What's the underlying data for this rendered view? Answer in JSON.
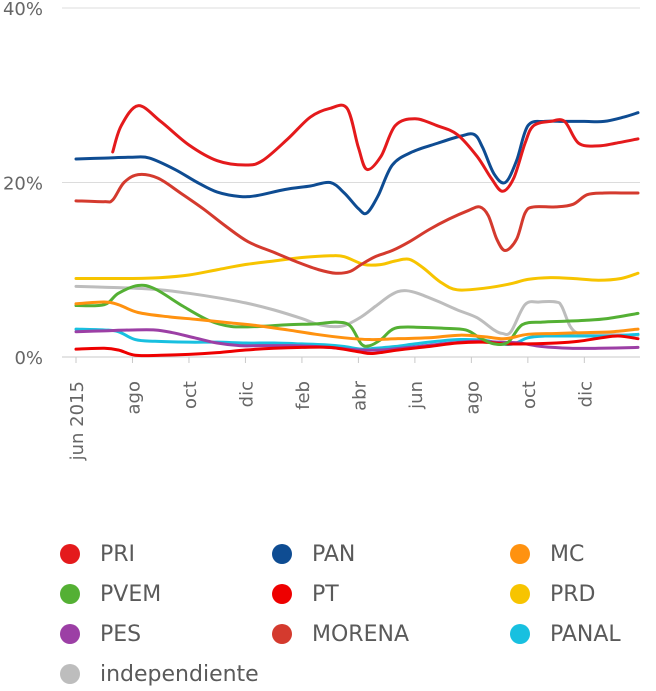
{
  "chart_data": {
    "type": "line",
    "title": "",
    "xlabel": "",
    "ylabel": "",
    "ylim": [
      0,
      40
    ],
    "y_ticks": [
      "0%",
      "20%",
      "40%"
    ],
    "x_tick_labels": [
      "jun 2015",
      "ago",
      "oct",
      "dic",
      "feb",
      "abr",
      "jun",
      "ago",
      "oct",
      "dic"
    ],
    "x_tick_months": [
      0,
      2,
      4,
      6,
      8,
      10,
      12,
      14,
      16,
      18
    ],
    "x_range_months": [
      0,
      19.9
    ],
    "legend_position": "bottom",
    "grid": "horizontal-at-ticks",
    "series": [
      {
        "name": "PRI",
        "color": "#e41a1c",
        "points": [
          [
            1.3,
            23.5
          ],
          [
            1.6,
            26.5
          ],
          [
            2.2,
            28.8
          ],
          [
            3,
            27
          ],
          [
            4,
            24.3
          ],
          [
            5,
            22.5
          ],
          [
            6,
            22
          ],
          [
            6.6,
            22.5
          ],
          [
            7.5,
            25
          ],
          [
            8.3,
            27.5
          ],
          [
            9,
            28.5
          ],
          [
            9.6,
            28.5
          ],
          [
            10,
            24
          ],
          [
            10.3,
            21.5
          ],
          [
            10.8,
            23
          ],
          [
            11.3,
            26.5
          ],
          [
            12,
            27.3
          ],
          [
            12.8,
            26.5
          ],
          [
            13.5,
            25.5
          ],
          [
            14.2,
            23
          ],
          [
            14.7,
            20.5
          ],
          [
            15.1,
            19
          ],
          [
            15.5,
            20.5
          ],
          [
            15.9,
            24.5
          ],
          [
            16.2,
            26.5
          ],
          [
            16.8,
            27
          ],
          [
            17.3,
            27
          ],
          [
            17.8,
            24.5
          ],
          [
            18.5,
            24.2
          ],
          [
            19.1,
            24.5
          ],
          [
            19.9,
            25
          ]
        ]
      },
      {
        "name": "PAN",
        "color": "#0e4c92",
        "points": [
          [
            0,
            22.7
          ],
          [
            1,
            22.8
          ],
          [
            2,
            22.9
          ],
          [
            2.6,
            22.8
          ],
          [
            3.5,
            21.5
          ],
          [
            4.3,
            20
          ],
          [
            5,
            18.9
          ],
          [
            5.8,
            18.4
          ],
          [
            6.4,
            18.5
          ],
          [
            7.4,
            19.2
          ],
          [
            8.3,
            19.6
          ],
          [
            9,
            20
          ],
          [
            9.5,
            18.8
          ],
          [
            10,
            17
          ],
          [
            10.3,
            16.5
          ],
          [
            10.7,
            18.5
          ],
          [
            11.2,
            22
          ],
          [
            11.9,
            23.5
          ],
          [
            12.8,
            24.5
          ],
          [
            13.6,
            25.3
          ],
          [
            14.1,
            25.5
          ],
          [
            14.4,
            24
          ],
          [
            14.8,
            21
          ],
          [
            15.2,
            20
          ],
          [
            15.6,
            22.5
          ],
          [
            16,
            26.5
          ],
          [
            16.6,
            27
          ],
          [
            17.3,
            27
          ],
          [
            18,
            27
          ],
          [
            18.7,
            27
          ],
          [
            19.4,
            27.5
          ],
          [
            19.9,
            28
          ]
        ]
      },
      {
        "name": "MC",
        "color": "#ff9210",
        "points": [
          [
            0,
            6.1
          ],
          [
            1,
            6.3
          ],
          [
            1.5,
            6
          ],
          [
            2.2,
            5.1
          ],
          [
            3.3,
            4.6
          ],
          [
            4.3,
            4.3
          ],
          [
            5.5,
            3.9
          ],
          [
            6.4,
            3.6
          ],
          [
            7.5,
            3.1
          ],
          [
            8.5,
            2.6
          ],
          [
            9.5,
            2.2
          ],
          [
            10.4,
            2
          ],
          [
            11.4,
            2.1
          ],
          [
            12.5,
            2.2
          ],
          [
            13.6,
            2.5
          ],
          [
            14.5,
            2.3
          ],
          [
            15.2,
            2.1
          ],
          [
            16,
            2.6
          ],
          [
            17,
            2.7
          ],
          [
            18.1,
            2.8
          ],
          [
            19,
            2.9
          ],
          [
            19.9,
            3.2
          ]
        ]
      },
      {
        "name": "PVEM",
        "color": "#54b034",
        "points": [
          [
            0,
            5.9
          ],
          [
            1,
            6
          ],
          [
            1.5,
            7.3
          ],
          [
            2.2,
            8.2
          ],
          [
            2.8,
            7.8
          ],
          [
            3.8,
            5.8
          ],
          [
            4.7,
            4.2
          ],
          [
            5.5,
            3.5
          ],
          [
            6.5,
            3.5
          ],
          [
            7.5,
            3.7
          ],
          [
            8.5,
            3.8
          ],
          [
            9.2,
            4
          ],
          [
            9.7,
            3.6
          ],
          [
            10.1,
            1.5
          ],
          [
            10.4,
            1.3
          ],
          [
            10.8,
            2
          ],
          [
            11.3,
            3.3
          ],
          [
            12.2,
            3.4
          ],
          [
            13,
            3.3
          ],
          [
            13.8,
            3.1
          ],
          [
            14.3,
            2.2
          ],
          [
            14.8,
            1.5
          ],
          [
            15.3,
            1.7
          ],
          [
            15.8,
            3.7
          ],
          [
            16.5,
            4
          ],
          [
            17.3,
            4.1
          ],
          [
            18,
            4.2
          ],
          [
            18.8,
            4.4
          ],
          [
            19.9,
            5
          ]
        ]
      },
      {
        "name": "PT",
        "color": "#ee0000",
        "points": [
          [
            0,
            0.9
          ],
          [
            1,
            1
          ],
          [
            1.5,
            0.8
          ],
          [
            2.1,
            0.2
          ],
          [
            3,
            0.2
          ],
          [
            4,
            0.3
          ],
          [
            5,
            0.5
          ],
          [
            6,
            0.8
          ],
          [
            7,
            1
          ],
          [
            8,
            1.1
          ],
          [
            9,
            1.1
          ],
          [
            10,
            0.6
          ],
          [
            10.5,
            0.4
          ],
          [
            11.4,
            0.8
          ],
          [
            12.5,
            1.2
          ],
          [
            13.5,
            1.6
          ],
          [
            14.4,
            1.7
          ],
          [
            15.2,
            1.5
          ],
          [
            16,
            1.5
          ],
          [
            17,
            1.6
          ],
          [
            17.8,
            1.8
          ],
          [
            18.6,
            2.2
          ],
          [
            19.2,
            2.4
          ],
          [
            19.9,
            2.1
          ]
        ]
      },
      {
        "name": "PRD",
        "color": "#f7c400",
        "points": [
          [
            0,
            9
          ],
          [
            1,
            9
          ],
          [
            2,
            9
          ],
          [
            3,
            9.1
          ],
          [
            4,
            9.4
          ],
          [
            5,
            10
          ],
          [
            6,
            10.6
          ],
          [
            7,
            11
          ],
          [
            8,
            11.4
          ],
          [
            9,
            11.6
          ],
          [
            9.5,
            11.5
          ],
          [
            10.2,
            10.6
          ],
          [
            10.8,
            10.6
          ],
          [
            11.3,
            11
          ],
          [
            11.8,
            11.2
          ],
          [
            12.3,
            10.2
          ],
          [
            12.9,
            8.6
          ],
          [
            13.5,
            7.7
          ],
          [
            14.5,
            7.9
          ],
          [
            15.4,
            8.4
          ],
          [
            16,
            8.9
          ],
          [
            16.8,
            9.1
          ],
          [
            17.6,
            9
          ],
          [
            18.5,
            8.8
          ],
          [
            19.3,
            9
          ],
          [
            19.9,
            9.6
          ]
        ]
      },
      {
        "name": "PES",
        "color": "#9c3fa5",
        "points": [
          [
            0,
            2.9
          ],
          [
            1,
            3
          ],
          [
            2,
            3.1
          ],
          [
            2.8,
            3.1
          ],
          [
            3.4,
            2.8
          ],
          [
            4.2,
            2.2
          ],
          [
            5,
            1.6
          ],
          [
            5.8,
            1.3
          ],
          [
            6.5,
            1.3
          ],
          [
            7.5,
            1.3
          ],
          [
            8.5,
            1.2
          ],
          [
            9.3,
            1
          ],
          [
            10,
            0.8
          ],
          [
            10.8,
            0.8
          ],
          [
            11.5,
            1
          ],
          [
            12.4,
            1.3
          ],
          [
            13.3,
            1.6
          ],
          [
            14.2,
            1.8
          ],
          [
            15,
            1.7
          ],
          [
            15.7,
            1.6
          ],
          [
            16.5,
            1.2
          ],
          [
            17.5,
            1
          ],
          [
            18.5,
            1
          ],
          [
            19.9,
            1.1
          ]
        ]
      },
      {
        "name": "MORENA",
        "color": "#d43a2e",
        "points": [
          [
            0,
            17.9
          ],
          [
            1,
            17.8
          ],
          [
            1.3,
            18
          ],
          [
            1.7,
            20
          ],
          [
            2.2,
            20.9
          ],
          [
            2.9,
            20.5
          ],
          [
            3.7,
            18.8
          ],
          [
            4.5,
            17
          ],
          [
            5.3,
            15
          ],
          [
            6.1,
            13.2
          ],
          [
            7,
            12
          ],
          [
            7.9,
            10.8
          ],
          [
            8.6,
            10
          ],
          [
            9.2,
            9.6
          ],
          [
            9.7,
            9.8
          ],
          [
            10.1,
            10.6
          ],
          [
            10.6,
            11.5
          ],
          [
            11.2,
            12.2
          ],
          [
            11.8,
            13.2
          ],
          [
            12.5,
            14.6
          ],
          [
            13.2,
            15.8
          ],
          [
            13.9,
            16.8
          ],
          [
            14.3,
            17.2
          ],
          [
            14.6,
            16.2
          ],
          [
            14.9,
            13.5
          ],
          [
            15.2,
            12.2
          ],
          [
            15.6,
            13.5
          ],
          [
            15.9,
            16.5
          ],
          [
            16.2,
            17.2
          ],
          [
            17,
            17.2
          ],
          [
            17.6,
            17.5
          ],
          [
            18.1,
            18.6
          ],
          [
            18.7,
            18.8
          ],
          [
            19.3,
            18.8
          ],
          [
            19.9,
            18.8
          ]
        ]
      },
      {
        "name": "PANAL",
        "color": "#18c0e0",
        "points": [
          [
            0,
            3.2
          ],
          [
            1,
            3.1
          ],
          [
            1.5,
            2.9
          ],
          [
            2.1,
            2
          ],
          [
            2.8,
            1.8
          ],
          [
            4,
            1.7
          ],
          [
            5,
            1.7
          ],
          [
            6,
            1.6
          ],
          [
            7,
            1.6
          ],
          [
            8,
            1.5
          ],
          [
            8.8,
            1.4
          ],
          [
            9.5,
            1.2
          ],
          [
            10.1,
            0.9
          ],
          [
            10.6,
            1
          ],
          [
            11.3,
            1.2
          ],
          [
            12,
            1.5
          ],
          [
            12.8,
            1.8
          ],
          [
            13.6,
            2
          ],
          [
            14.5,
            1.9
          ],
          [
            15,
            1.5
          ],
          [
            15.5,
            1.5
          ],
          [
            16,
            2.2
          ],
          [
            16.6,
            2.4
          ],
          [
            17.4,
            2.4
          ],
          [
            18.2,
            2.4
          ],
          [
            19,
            2.4
          ],
          [
            19.9,
            2.6
          ]
        ]
      },
      {
        "name": "independiente",
        "color": "#bdbdbd",
        "points": [
          [
            0,
            8.1
          ],
          [
            1,
            8
          ],
          [
            2,
            7.9
          ],
          [
            3,
            7.7
          ],
          [
            4,
            7.3
          ],
          [
            5,
            6.8
          ],
          [
            6,
            6.2
          ],
          [
            7,
            5.4
          ],
          [
            8,
            4.4
          ],
          [
            8.5,
            3.8
          ],
          [
            9,
            3.5
          ],
          [
            9.5,
            3.6
          ],
          [
            10.1,
            4.6
          ],
          [
            10.6,
            5.8
          ],
          [
            11.1,
            7
          ],
          [
            11.4,
            7.5
          ],
          [
            11.7,
            7.6
          ],
          [
            12.1,
            7.3
          ],
          [
            12.8,
            6.4
          ],
          [
            13.5,
            5.4
          ],
          [
            14.2,
            4.5
          ],
          [
            14.8,
            3.1
          ],
          [
            15.1,
            2.7
          ],
          [
            15.4,
            2.9
          ],
          [
            15.9,
            6
          ],
          [
            16.4,
            6.3
          ],
          [
            17,
            6.3
          ],
          [
            17.2,
            5.8
          ],
          [
            17.5,
            3.5
          ],
          [
            17.8,
            2.7
          ],
          [
            18.3,
            2.6
          ],
          [
            19.9,
            2.5
          ]
        ]
      }
    ]
  },
  "legend": {
    "items": [
      {
        "label": "PRI",
        "color": "#e41a1c"
      },
      {
        "label": "PAN",
        "color": "#0e4c92"
      },
      {
        "label": "MC",
        "color": "#ff9210"
      },
      {
        "label": "PVEM",
        "color": "#54b034"
      },
      {
        "label": "PT",
        "color": "#ee0000"
      },
      {
        "label": "PRD",
        "color": "#f7c400"
      },
      {
        "label": "PES",
        "color": "#9c3fa5"
      },
      {
        "label": "MORENA",
        "color": "#d43a2e"
      },
      {
        "label": "PANAL",
        "color": "#18c0e0"
      },
      {
        "label": "independiente",
        "color": "#bdbdbd"
      }
    ]
  }
}
